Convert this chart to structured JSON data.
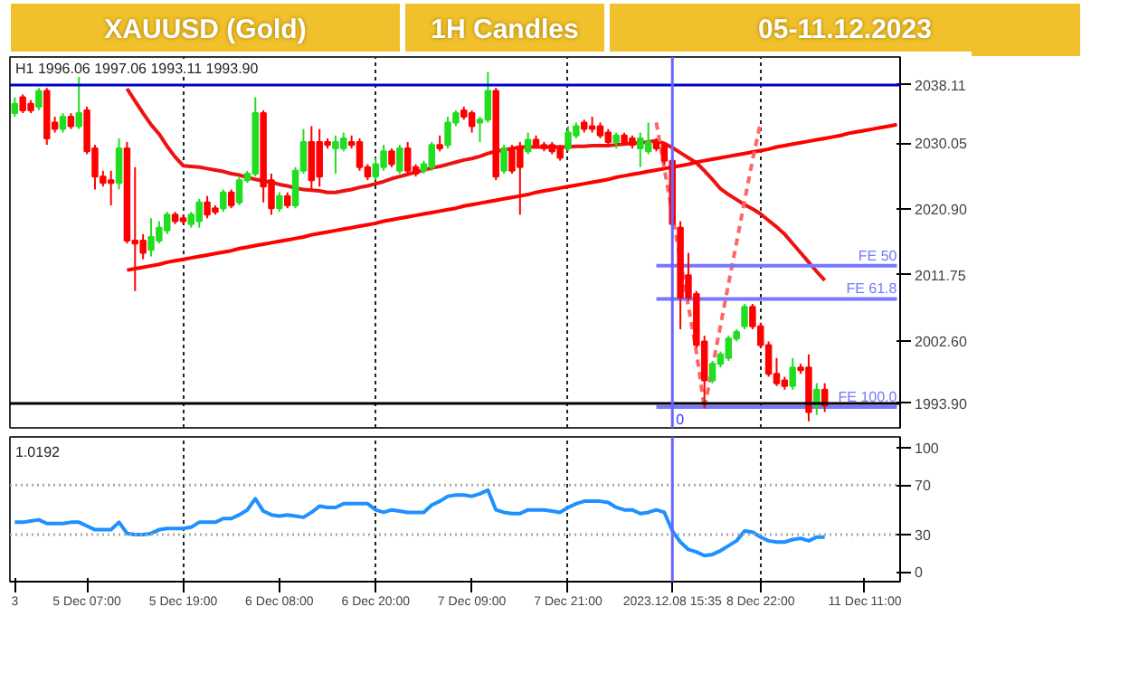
{
  "chart_data": [
    {
      "type": "candlestick",
      "title": "XAUUSD (Gold)",
      "subtitle": "1H Candles",
      "annotations": [
        "05-11.12.2023",
        "H1 1996.06 1997.06 1993.11 1993.90",
        {
          "text": "0",
          "x": "2023.12.08 15:35",
          "y": 1991
        }
      ],
      "categories": [
        "3",
        null,
        null,
        null,
        null,
        null,
        null,
        null,
        null,
        "5 Dec 07:00",
        null,
        null,
        null,
        null,
        null,
        null,
        null,
        null,
        null,
        null,
        null,
        "5 Dec 19:00",
        null,
        null,
        null,
        null,
        null,
        null,
        null,
        null,
        null,
        null,
        null,
        "6 Dec 08:00",
        null,
        null,
        null,
        null,
        null,
        null,
        null,
        null,
        null,
        null,
        null,
        "6 Dec 20:00",
        null,
        null,
        null,
        null,
        null,
        null,
        null,
        null,
        null,
        null,
        null,
        "7 Dec 09:00",
        null,
        null,
        null,
        null,
        null,
        null,
        null,
        null,
        null,
        null,
        null,
        "7 Dec 21:00",
        null,
        null,
        null,
        null,
        null,
        null,
        null,
        null,
        null,
        null,
        null,
        null,
        "2023.12.08 15:35",
        null,
        null,
        null,
        null,
        null,
        null,
        null,
        null,
        null,
        null,
        "8 Dec 22:00",
        null,
        null,
        null,
        null,
        null,
        null,
        null,
        null,
        null,
        null,
        null,
        null,
        "11 Dec 11:00",
        null,
        null,
        null,
        null
      ],
      "ylim": [
        1990.5,
        2042
      ],
      "yticks": [
        {
          "value": 2002.6,
          "label": "2002.60"
        },
        2011.75,
        {
          "value": 2020.9,
          "label": "2020.90"
        },
        2030.05
      ],
      "tick_labels": "y",
      "grid": "x",
      "ref_lines": [
        {
          "axis": "y",
          "value": 2038.11,
          "label": "2038.11",
          "color": "#0000cc"
        },
        {
          "axis": "y",
          "value": 1993.9,
          "label": "1993.90",
          "color": "#000000"
        },
        {
          "axis": "x",
          "value": "2023.12.08 15:35",
          "color": "#6666ff"
        }
      ],
      "series": [
        {
          "type": "line",
          "color": "#ee1111",
          "values": [
            null,
            null,
            null,
            null,
            null,
            null,
            null,
            null,
            null,
            null,
            null,
            null,
            null,
            null,
            2037.6,
            2035.9,
            2034.2,
            2032.6,
            2031.3,
            2029.6,
            2028.1,
            2026.9,
            2026.8,
            2026.7,
            2026.5,
            2026.3,
            2026.1,
            2025.8,
            2025.6,
            2025.3,
            2025.0,
            2024.8,
            2024.6,
            2024.3,
            2024.1,
            2023.8,
            2023.6,
            2023.5,
            2023.4,
            2023.2,
            2023.2,
            2023.4,
            2023.6,
            2023.9,
            2024.1,
            2024.4,
            2024.7,
            2025.1,
            2025.4,
            2025.7,
            2026.0,
            2026.3,
            2026.6,
            2026.8,
            2027.1,
            2027.4,
            2027.7,
            2027.9,
            2028.2,
            2028.6,
            2028.9,
            2029.1,
            2029.3,
            2029.5,
            2029.5,
            2029.5,
            2029.5,
            2029.5,
            2029.5,
            2029.5,
            2029.6,
            2029.6,
            2029.7,
            2029.7,
            2029.7,
            2029.8,
            2029.9,
            2030.0,
            2030.1,
            2030.2,
            2030.4,
            2030.0,
            2029.4,
            2028.7,
            2028.0,
            2027.3,
            2026.2,
            2025.0,
            2023.7,
            2022.9,
            2022.2,
            2021.5,
            2020.9,
            2020.2,
            2019.3,
            2018.4,
            2017.4,
            2016.1,
            2014.8,
            2013.5,
            2012.2,
            2011.0,
            null,
            null,
            null,
            null,
            null,
            null,
            null,
            null,
            null
          ]
        },
        {
          "type": "line",
          "color": "#ff0000",
          "values": [
            null,
            null,
            null,
            null,
            null,
            null,
            null,
            null,
            null,
            null,
            null,
            null,
            null,
            null,
            2012.4,
            2012.6,
            2012.8,
            2013.0,
            2013.2,
            2013.5,
            2013.7,
            2013.9,
            2014.1,
            2014.3,
            2014.5,
            2014.7,
            2014.9,
            2015.1,
            2015.4,
            2015.6,
            2015.8,
            2016.0,
            2016.2,
            2016.4,
            2016.6,
            2016.8,
            2017.0,
            2017.3,
            2017.5,
            2017.7,
            2017.9,
            2018.1,
            2018.3,
            2018.5,
            2018.7,
            2018.9,
            2019.2,
            2019.4,
            2019.6,
            2019.8,
            2020.0,
            2020.2,
            2020.4,
            2020.6,
            2020.8,
            2021.0,
            2021.3,
            2021.5,
            2021.7,
            2021.9,
            2022.1,
            2022.3,
            2022.5,
            2022.7,
            2022.9,
            2023.2,
            2023.4,
            2023.6,
            2023.8,
            2024.0,
            2024.2,
            2024.4,
            2024.6,
            2024.8,
            2025.0,
            2025.3,
            2025.5,
            2025.7,
            2025.9,
            2026.1,
            2026.3,
            2026.5,
            2026.7,
            2026.9,
            2027.1,
            2027.4,
            2027.6,
            2027.8,
            2028.0,
            2028.2,
            2028.4,
            2028.6,
            2028.8,
            2029.0,
            2029.2,
            2029.5,
            2029.7,
            2029.9,
            2030.1,
            2030.3,
            2030.5,
            2030.7,
            2030.9,
            2031.1,
            2031.4,
            2031.6,
            2031.8,
            2032.0,
            2032.2,
            2032.4,
            2032.6
          ]
        },
        {
          "type": "line",
          "color": "#ff6666",
          "line_style": "dashed",
          "values": [
            null,
            null,
            null,
            null,
            null,
            null,
            null,
            null,
            null,
            null,
            null,
            null,
            null,
            null,
            null,
            null,
            null,
            null,
            null,
            null,
            null,
            null,
            null,
            null,
            null,
            null,
            null,
            null,
            null,
            null,
            null,
            null,
            null,
            null,
            null,
            null,
            null,
            null,
            null,
            null,
            null,
            null,
            null,
            null,
            null,
            null,
            null,
            null,
            null,
            null,
            null,
            null,
            null,
            null,
            null,
            null,
            null,
            null,
            null,
            null,
            null,
            null,
            null,
            null,
            null,
            null,
            null,
            null,
            null,
            null,
            null,
            null,
            null,
            null,
            null,
            null,
            null,
            null,
            null,
            null,
            2032.9,
            2026.5,
            2020.2,
            2013.8,
            2007.4,
            2001.0,
            1993.2,
            1998.9,
            2004.7,
            2010.5,
            2016.2,
            2022.0,
            2027.7,
            2032.9,
            null,
            null,
            null,
            null,
            null,
            null,
            null,
            null,
            null,
            null,
            null,
            null,
            null,
            null,
            null,
            null,
            null
          ]
        },
        {
          "type": "line",
          "name": "FE 50",
          "color": "#7777ff",
          "values": [
            null,
            null,
            null,
            null,
            null,
            null,
            null,
            null,
            null,
            null,
            null,
            null,
            null,
            null,
            null,
            null,
            null,
            null,
            null,
            null,
            null,
            null,
            null,
            null,
            null,
            null,
            null,
            null,
            null,
            null,
            null,
            null,
            null,
            null,
            null,
            null,
            null,
            null,
            null,
            null,
            null,
            null,
            null,
            null,
            null,
            null,
            null,
            null,
            null,
            null,
            null,
            null,
            null,
            null,
            null,
            null,
            null,
            null,
            null,
            null,
            null,
            null,
            null,
            null,
            null,
            null,
            null,
            null,
            null,
            null,
            null,
            null,
            null,
            null,
            null,
            null,
            null,
            null,
            null,
            null,
            2013.0,
            2013.0,
            2013.0,
            2013.0,
            2013.0,
            2013.0,
            2013.0,
            2013.0,
            2013.0,
            2013.0,
            2013.0,
            2013.0,
            2013.0,
            2013.0,
            2013.0,
            2013.0,
            2013.0,
            2013.0,
            2013.0,
            2013.0,
            2013.0,
            2013.0,
            2013.0,
            2013.0,
            2013.0,
            2013.0,
            2013.0,
            2013.0,
            2013.0,
            2013.0,
            2013.0
          ]
        },
        {
          "type": "line",
          "name": "FE 61.8",
          "color": "#7777ff",
          "values": [
            null,
            null,
            null,
            null,
            null,
            null,
            null,
            null,
            null,
            null,
            null,
            null,
            null,
            null,
            null,
            null,
            null,
            null,
            null,
            null,
            null,
            null,
            null,
            null,
            null,
            null,
            null,
            null,
            null,
            null,
            null,
            null,
            null,
            null,
            null,
            null,
            null,
            null,
            null,
            null,
            null,
            null,
            null,
            null,
            null,
            null,
            null,
            null,
            null,
            null,
            null,
            null,
            null,
            null,
            null,
            null,
            null,
            null,
            null,
            null,
            null,
            null,
            null,
            null,
            null,
            null,
            null,
            null,
            null,
            null,
            null,
            null,
            null,
            null,
            null,
            null,
            null,
            null,
            null,
            null,
            2008.4,
            2008.4,
            2008.4,
            2008.4,
            2008.4,
            2008.4,
            2008.4,
            2008.4,
            2008.4,
            2008.4,
            2008.4,
            2008.4,
            2008.4,
            2008.4,
            2008.4,
            2008.4,
            2008.4,
            2008.4,
            2008.4,
            2008.4,
            2008.4,
            2008.4,
            2008.4,
            2008.4,
            2008.4,
            2008.4,
            2008.4,
            2008.4,
            2008.4,
            2008.4,
            2008.4
          ]
        },
        {
          "type": "line",
          "name": "FE 100.0",
          "color": "#7777ff",
          "values": [
            null,
            null,
            null,
            null,
            null,
            null,
            null,
            null,
            null,
            null,
            null,
            null,
            null,
            null,
            null,
            null,
            null,
            null,
            null,
            null,
            null,
            null,
            null,
            null,
            null,
            null,
            null,
            null,
            null,
            null,
            null,
            null,
            null,
            null,
            null,
            null,
            null,
            null,
            null,
            null,
            null,
            null,
            null,
            null,
            null,
            null,
            null,
            null,
            null,
            null,
            null,
            null,
            null,
            null,
            null,
            null,
            null,
            null,
            null,
            null,
            null,
            null,
            null,
            null,
            null,
            null,
            null,
            null,
            null,
            null,
            null,
            null,
            null,
            null,
            null,
            null,
            null,
            null,
            null,
            null,
            1993.4,
            1993.4,
            1993.4,
            1993.4,
            1993.4,
            1993.4,
            1993.4,
            1993.4,
            1993.4,
            1993.4,
            1993.4,
            1993.4,
            1993.4,
            1993.4,
            1993.4,
            1993.4,
            1993.4,
            1993.4,
            1993.4,
            1993.4,
            1993.4,
            1993.4,
            1993.4,
            1993.4,
            1993.4,
            1993.4,
            1993.4,
            1993.4,
            1993.4,
            1993.4,
            1993.4
          ]
        },
        {
          "type": "candlestick",
          "colors": [
            "#22dd22",
            "#ff0000",
            "#ff0000",
            "#22dd22",
            "#ff0000",
            "#ff0000",
            "#22dd22",
            "#ff0000",
            "#22dd22",
            "#ff0000",
            "#ff0000",
            "#ff0000",
            "#ff0000",
            "#22dd22",
            "#ff0000",
            "#ff0000",
            "#ff0000",
            "#22dd22",
            "#22dd22",
            "#22dd22",
            "#ff0000",
            "#ff0000",
            "#22dd22",
            "#22dd22",
            "#ff0000",
            "#ff0000",
            "#22dd22",
            "#ff0000",
            "#22dd22",
            "#22dd22",
            "#22dd22",
            "#ff0000",
            "#ff0000",
            "#22dd22",
            "#ff0000",
            "#22dd22",
            "#22dd22",
            "#ff0000",
            "#ff0000",
            "#ff0000",
            "#22dd22",
            "#22dd22",
            "#ff0000",
            "#ff0000",
            "#ff0000",
            "#22dd22",
            "#22dd22",
            "#ff0000",
            "#22dd22",
            "#ff0000",
            "#ff0000",
            "#22dd22",
            "#22dd22",
            "#ff0000",
            "#22dd22",
            "#22dd22",
            "#ff0000",
            "#ff0000",
            "#22dd22",
            "#22dd22",
            "#ff0000",
            "#22dd22",
            "#ff0000",
            "#ff0000",
            "#22dd22",
            "#ff0000",
            "#ff0000",
            "#ff0000",
            "#ff0000",
            "#22dd22",
            "#22dd22",
            "#ff0000",
            "#ff0000",
            "#ff0000",
            "#ff0000",
            "#22dd22",
            "#ff0000",
            "#ff0000",
            "#22dd22",
            "#22dd22",
            "#ff0000",
            "#ff0000",
            "#ff0000",
            "#ff0000",
            "#ff0000",
            "#ff0000",
            "#ff0000",
            "#22dd22",
            "#22dd22",
            "#22dd22",
            "#22dd22",
            "#22dd22",
            "#ff0000",
            "#ff0000",
            "#ff0000",
            "#ff0000",
            "#ff0000",
            "#22dd22",
            "#ff0000",
            "#ff0000",
            "#22dd22",
            "#ff0000",
            null,
            null,
            null,
            null,
            null,
            null,
            null,
            null,
            null
          ],
          "ohlc": [
            [
              2034.2,
              2036.4,
              2033.7,
              2035.5
            ],
            [
              2036.4,
              2036.8,
              2034.2,
              2034.6
            ],
            [
              2035.5,
              2036.0,
              2034.2,
              2034.6
            ],
            [
              2035.1,
              2037.7,
              2034.6,
              2037.3
            ],
            [
              2037.3,
              2037.7,
              2029.8,
              2030.7
            ],
            [
              2032.9,
              2033.7,
              2031.5,
              2032.0
            ],
            [
              2032.0,
              2034.2,
              2031.5,
              2033.7
            ],
            [
              2033.7,
              2034.2,
              2032.0,
              2032.4
            ],
            [
              2032.4,
              2039.5,
              2032.0,
              2034.2
            ],
            [
              2034.6,
              2035.1,
              2028.5,
              2028.9
            ],
            [
              2029.3,
              2029.8,
              2023.6,
              2025.4
            ],
            [
              2025.4,
              2026.2,
              2024.0,
              2024.5
            ],
            [
              2024.9,
              2026.2,
              2021.4,
              2024.5
            ],
            [
              2024.5,
              2030.7,
              2023.6,
              2029.3
            ],
            [
              2029.3,
              2030.2,
              2016.1,
              2016.5
            ],
            [
              2016.5,
              2026.7,
              2009.5,
              2016.1
            ],
            [
              2016.5,
              2017.4,
              2013.9,
              2014.8
            ],
            [
              2015.2,
              2019.6,
              2014.3,
              2017.0
            ],
            [
              2016.5,
              2019.2,
              2016.1,
              2018.3
            ],
            [
              2017.9,
              2020.5,
              2017.4,
              2020.1
            ],
            [
              2020.1,
              2020.5,
              2018.8,
              2019.2
            ],
            [
              2019.6,
              2020.1,
              2018.8,
              2019.2
            ],
            [
              2018.8,
              2020.5,
              2018.3,
              2020.1
            ],
            [
              2019.2,
              2022.3,
              2018.3,
              2021.8
            ],
            [
              2021.8,
              2022.7,
              2019.6,
              2020.1
            ],
            [
              2021.0,
              2021.4,
              2020.1,
              2020.5
            ],
            [
              2021.0,
              2023.6,
              2020.5,
              2023.2
            ],
            [
              2023.2,
              2023.6,
              2021.0,
              2021.4
            ],
            [
              2021.8,
              2025.4,
              2021.4,
              2024.9
            ],
            [
              2024.9,
              2026.2,
              2024.5,
              2025.8
            ],
            [
              2025.8,
              2036.4,
              2025.4,
              2034.2
            ],
            [
              2034.2,
              2034.6,
              2021.8,
              2024.0
            ],
            [
              2024.9,
              2025.8,
              2020.1,
              2021.0
            ],
            [
              2021.0,
              2023.2,
              2020.5,
              2022.7
            ],
            [
              2022.7,
              2023.2,
              2021.0,
              2021.4
            ],
            [
              2021.4,
              2026.7,
              2021.0,
              2026.2
            ],
            [
              2026.2,
              2032.0,
              2025.8,
              2030.2
            ],
            [
              2030.2,
              2032.4,
              2023.6,
              2024.9
            ],
            [
              2030.2,
              2032.0,
              2024.0,
              2025.4
            ],
            [
              2030.2,
              2030.7,
              2029.3,
              2029.8
            ],
            [
              2029.3,
              2031.1,
              2025.8,
              2030.2
            ],
            [
              2029.3,
              2031.5,
              2028.9,
              2030.7
            ],
            [
              2030.2,
              2031.1,
              2029.3,
              2029.8
            ],
            [
              2030.2,
              2030.7,
              2026.2,
              2026.7
            ],
            [
              2026.7,
              2027.1,
              2024.9,
              2025.4
            ],
            [
              2025.4,
              2028.0,
              2024.9,
              2027.1
            ],
            [
              2026.7,
              2029.8,
              2026.2,
              2028.9
            ],
            [
              2028.9,
              2029.3,
              2026.7,
              2027.1
            ],
            [
              2026.2,
              2029.8,
              2025.8,
              2029.3
            ],
            [
              2029.3,
              2030.2,
              2025.8,
              2026.2
            ],
            [
              2026.7,
              2027.1,
              2025.4,
              2025.8
            ],
            [
              2026.2,
              2027.6,
              2025.8,
              2027.1
            ],
            [
              2026.7,
              2030.2,
              2026.2,
              2029.8
            ],
            [
              2029.8,
              2031.1,
              2028.9,
              2029.3
            ],
            [
              2029.8,
              2033.7,
              2029.3,
              2032.9
            ],
            [
              2032.9,
              2034.6,
              2032.4,
              2034.2
            ],
            [
              2034.6,
              2035.1,
              2033.3,
              2033.7
            ],
            [
              2034.2,
              2034.6,
              2031.5,
              2032.4
            ],
            [
              2032.9,
              2033.7,
              2030.2,
              2033.3
            ],
            [
              2033.3,
              2039.9,
              2032.9,
              2037.3
            ],
            [
              2037.3,
              2037.7,
              2024.9,
              2025.4
            ],
            [
              2026.2,
              2029.8,
              2025.8,
              2029.3
            ],
            [
              2029.3,
              2029.8,
              2025.8,
              2026.2
            ],
            [
              2029.3,
              2030.2,
              2020.1,
              2026.7
            ],
            [
              2028.9,
              2031.5,
              2028.5,
              2030.5
            ],
            [
              2030.5,
              2031.1,
              2029.3,
              2029.8
            ],
            [
              2029.8,
              2030.2,
              2028.9,
              2029.3
            ],
            [
              2029.8,
              2030.2,
              2028.5,
              2028.9
            ],
            [
              2029.3,
              2029.8,
              2027.6,
              2028.0
            ],
            [
              2029.3,
              2032.4,
              2028.9,
              2031.5
            ],
            [
              2031.1,
              2032.9,
              2030.7,
              2032.4
            ],
            [
              2032.9,
              2033.3,
              2031.5,
              2032.0
            ],
            [
              2032.4,
              2033.7,
              2031.5,
              2032.0
            ],
            [
              2032.4,
              2032.9,
              2030.7,
              2031.1
            ],
            [
              2031.5,
              2032.0,
              2029.8,
              2030.2
            ],
            [
              2030.2,
              2031.5,
              2029.3,
              2031.1
            ],
            [
              2031.1,
              2031.5,
              2029.8,
              2030.2
            ],
            [
              2030.7,
              2031.1,
              2029.3,
              2029.8
            ],
            [
              2029.3,
              2031.5,
              2026.7,
              2030.7
            ],
            [
              2028.9,
              2032.9,
              2028.5,
              2030.2
            ],
            [
              2030.2,
              2030.7,
              2028.9,
              2029.3
            ],
            [
              2029.8,
              2030.2,
              2027.1,
              2027.6
            ],
            [
              2027.6,
              2028.0,
              2018.3,
              2018.8
            ],
            [
              2018.3,
              2019.2,
              2004.2,
              2008.6
            ],
            [
              2011.7,
              2014.8,
              2008.2,
              2008.6
            ],
            [
              2009.1,
              2009.5,
              2001.6,
              2002.0
            ],
            [
              2002.5,
              2003.3,
              1993.2,
              1997.1
            ],
            [
              1997.1,
              1999.8,
              1996.7,
              1999.4
            ],
            [
              1999.4,
              2001.1,
              1998.9,
              2000.7
            ],
            [
              2000.2,
              2003.3,
              1999.8,
              2002.9
            ],
            [
              2002.9,
              2004.2,
              2002.5,
              2003.8
            ],
            [
              2004.6,
              2007.7,
              2004.2,
              2007.3
            ],
            [
              2007.3,
              2007.7,
              2004.2,
              2004.6
            ],
            [
              2004.6,
              2005.1,
              2001.6,
              2002.0
            ],
            [
              2002.0,
              2002.5,
              1997.6,
              1998.0
            ],
            [
              1998.0,
              2000.2,
              1996.3,
              1996.7
            ],
            [
              1997.1,
              1997.6,
              1995.8,
              1996.3
            ],
            [
              1996.3,
              2000.2,
              1995.8,
              1998.9
            ],
            [
              1998.9,
              1999.4,
              1998.0,
              1998.5
            ],
            [
              1998.9,
              2000.7,
              1991.4,
              1992.7
            ],
            [
              1993.6,
              1996.7,
              1992.3,
              1995.8
            ],
            [
              1995.8,
              1996.7,
              1992.7,
              1993.6
            ],
            null,
            null,
            null,
            null,
            null,
            null,
            null,
            null,
            null
          ]
        }
      ]
    },
    {
      "type": "line",
      "annotations": [
        "1.0192"
      ],
      "categories": [
        "3",
        null,
        null,
        null,
        null,
        null,
        null,
        null,
        null,
        "5 Dec 07:00",
        null,
        null,
        null,
        null,
        null,
        null,
        null,
        null,
        null,
        null,
        null,
        "5 Dec 19:00",
        null,
        null,
        null,
        null,
        null,
        null,
        null,
        null,
        null,
        null,
        null,
        "6 Dec 08:00",
        null,
        null,
        null,
        null,
        null,
        null,
        null,
        null,
        null,
        null,
        null,
        "6 Dec 20:00",
        null,
        null,
        null,
        null,
        null,
        null,
        null,
        null,
        null,
        null,
        null,
        "7 Dec 09:00",
        null,
        null,
        null,
        null,
        null,
        null,
        null,
        null,
        null,
        null,
        null,
        "7 Dec 21:00",
        null,
        null,
        null,
        null,
        null,
        null,
        null,
        null,
        null,
        null,
        null,
        null,
        "2023.12.08 15:35",
        null,
        null,
        null,
        null,
        null,
        null,
        null,
        null,
        null,
        null,
        "8 Dec 22:00",
        null,
        null,
        null,
        null,
        null,
        null,
        null,
        null,
        null,
        null,
        null,
        null,
        "11 Dec 11:00",
        null,
        null,
        null,
        null
      ],
      "ylim": [
        -8,
        109
      ],
      "yticks": [
        0,
        30,
        70,
        100
      ],
      "grid": "x",
      "ref_lines": [
        {
          "axis": "y",
          "value": 30,
          "color": "#aaaaaa",
          "line_style": "dotted"
        },
        {
          "axis": "y",
          "value": 70,
          "color": "#aaaaaa",
          "line_style": "dotted"
        },
        {
          "axis": "x",
          "value": "2023.12.08 15:35",
          "color": "#6666ff"
        }
      ],
      "series": [
        {
          "color": "#1e90ff",
          "values": [
            40,
            40,
            41,
            42,
            39,
            39,
            39,
            40,
            40,
            37,
            34,
            34,
            34,
            40,
            31,
            30,
            30,
            31,
            34,
            35,
            35,
            35,
            36,
            40,
            40,
            40,
            43,
            43,
            46,
            50,
            59,
            49,
            46,
            45,
            46,
            45,
            44,
            48,
            53,
            52,
            52,
            55,
            55,
            55,
            55,
            50,
            48,
            50,
            49,
            48,
            48,
            48,
            54,
            57,
            61,
            62,
            62,
            61,
            63,
            66,
            50,
            48,
            47,
            47,
            50,
            50,
            50,
            49,
            48,
            52,
            55,
            57,
            57,
            57,
            56,
            52,
            50,
            50,
            47,
            48,
            50,
            48,
            33,
            24,
            18,
            16,
            13,
            14,
            17,
            21,
            25,
            33,
            32,
            28,
            25,
            24,
            24,
            26,
            27,
            25,
            28,
            28,
            null,
            null,
            null,
            null,
            null,
            null,
            null,
            null,
            null
          ]
        }
      ]
    }
  ]
}
